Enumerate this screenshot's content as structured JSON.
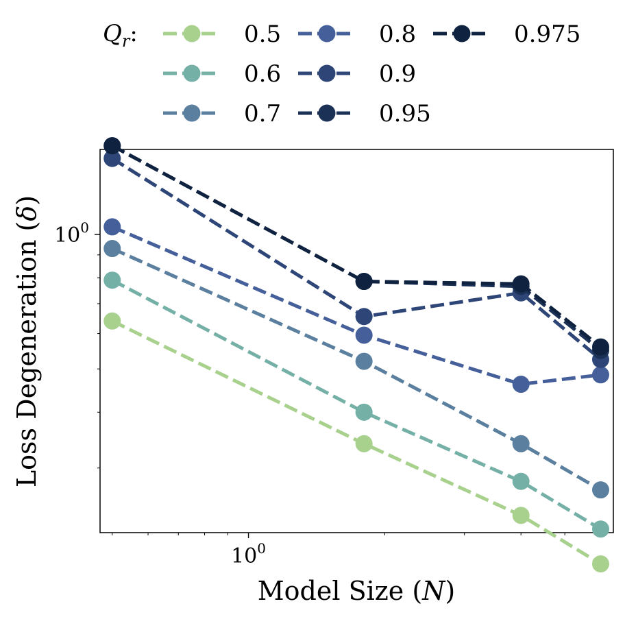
{
  "chart_data": {
    "type": "line",
    "xscale": "log",
    "yscale": "log",
    "xlabel_text": "Model Size (",
    "xlabel_var": "N",
    "xlabel_close": ")",
    "ylabel_text": "Loss Degeneration (",
    "ylabel_var": "δ",
    "ylabel_close": ")",
    "xlim": [
      0.47,
      6.4
    ],
    "ylim": [
      0.215,
      1.55
    ],
    "xtick_major": {
      "base": "10",
      "exp": "0",
      "value": 1
    },
    "ytick_major": {
      "base": "10",
      "exp": "0",
      "value": 1
    },
    "x": [
      0.5,
      1.8,
      4.0,
      6.0
    ],
    "legend": {
      "title_var": "Q",
      "title_sub": "r",
      "title_suffix": ":",
      "placement": "top"
    },
    "series": [
      {
        "name": "0.5",
        "color": "#a9d18e",
        "values": [
          0.64,
          0.34,
          0.235,
          0.183
        ]
      },
      {
        "name": "0.6",
        "color": "#74b0a6",
        "values": [
          0.79,
          0.4,
          0.28,
          0.219
        ]
      },
      {
        "name": "0.7",
        "color": "#5b7f9e",
        "values": [
          0.93,
          0.52,
          0.34,
          0.268
        ]
      },
      {
        "name": "0.8",
        "color": "#445f99",
        "values": [
          1.04,
          0.595,
          0.462,
          0.485
        ]
      },
      {
        "name": "0.9",
        "color": "#2e4677",
        "values": [
          1.48,
          0.655,
          0.74,
          0.525
        ]
      },
      {
        "name": "0.95",
        "color": "#1c3156",
        "values": [
          1.58,
          0.785,
          0.765,
          0.55
        ]
      },
      {
        "name": "0.975",
        "color": "#0f2341",
        "values": [
          1.58,
          0.785,
          0.775,
          0.56
        ]
      }
    ]
  }
}
